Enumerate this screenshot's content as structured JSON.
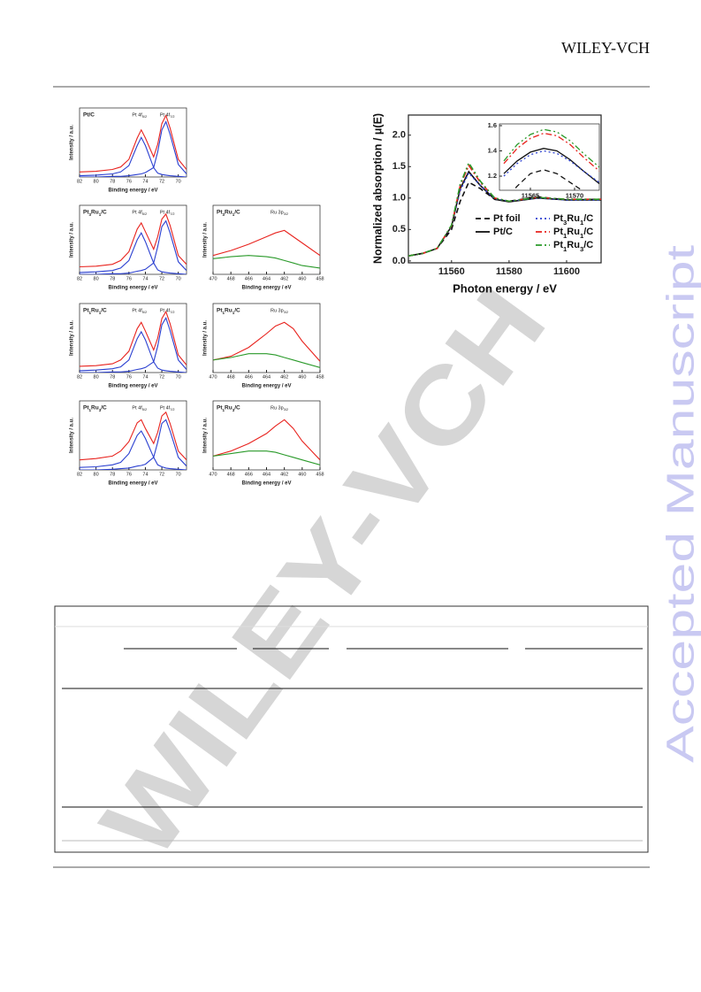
{
  "header": {
    "publisher": "WILEY-VCH"
  },
  "watermark": {
    "text": "WILEY-VCH",
    "stamp": "Accepted Manuscript"
  },
  "figure_xps": {
    "panels": [
      {
        "type": "line",
        "title": "Pt/C",
        "xlabel": "Binding energy / eV",
        "ylabel": "Intensity / a.u.",
        "peaks": [
          "Pt 4f5/2",
          "Pt 4f7/2"
        ],
        "xlim": [
          82,
          69
        ],
        "xticks": [
          82,
          80,
          78,
          76,
          74,
          72,
          70
        ],
        "ylim": [
          0,
          1.1
        ],
        "x": [
          82,
          80,
          78,
          77,
          76,
          75,
          74.5,
          74,
          73,
          72.5,
          72,
          71.5,
          71,
          70,
          69
        ],
        "series": [
          {
            "color": "#e8231e",
            "values": [
              0.08,
              0.09,
              0.12,
              0.16,
              0.28,
              0.62,
              0.75,
              0.62,
              0.32,
              0.52,
              0.85,
              0.98,
              0.78,
              0.28,
              0.12
            ]
          },
          {
            "color": "#2a3fd0",
            "values": [
              0.02,
              0.03,
              0.05,
              0.08,
              0.18,
              0.5,
              0.63,
              0.5,
              0.15,
              0.06,
              0.04,
              0.03,
              0.02,
              0.01,
              0.0
            ]
          },
          {
            "color": "#2a3fd0",
            "values": [
              0.0,
              0.0,
              0.01,
              0.01,
              0.02,
              0.04,
              0.05,
              0.07,
              0.15,
              0.4,
              0.75,
              0.88,
              0.68,
              0.2,
              0.05
            ]
          }
        ]
      },
      {
        "type": "line",
        "title": "Pt3Ru1/C",
        "xlabel": "Binding energy / eV",
        "ylabel": "Intensity / a.u.",
        "peaks": [
          "Pt 4f5/2",
          "Pt 4f7/2"
        ],
        "xlim": [
          82,
          69
        ],
        "xticks": [
          82,
          80,
          78,
          76,
          74,
          72,
          70
        ],
        "ylim": [
          0,
          1.1
        ],
        "x": [
          82,
          80,
          78,
          77,
          76,
          75,
          74.5,
          74,
          73,
          72.5,
          72,
          71.5,
          71,
          70,
          69
        ],
        "series": [
          {
            "color": "#e8231e",
            "values": [
              0.12,
              0.13,
              0.16,
              0.22,
              0.36,
              0.72,
              0.82,
              0.68,
              0.4,
              0.6,
              0.88,
              0.96,
              0.78,
              0.3,
              0.16
            ]
          },
          {
            "color": "#2a3fd0",
            "values": [
              0.03,
              0.04,
              0.06,
              0.1,
              0.22,
              0.55,
              0.66,
              0.52,
              0.18,
              0.07,
              0.04,
              0.03,
              0.02,
              0.01,
              0.0
            ]
          },
          {
            "color": "#2a3fd0",
            "values": [
              0.0,
              0.0,
              0.01,
              0.01,
              0.02,
              0.05,
              0.06,
              0.08,
              0.18,
              0.44,
              0.76,
              0.85,
              0.66,
              0.2,
              0.06
            ]
          }
        ]
      },
      {
        "type": "line",
        "title": "Pt3Ru1/C",
        "xlabel": "Binding energy / eV",
        "ylabel": "Intensity / a.u.",
        "peaks": [
          "Ru 3p3/2"
        ],
        "xlim": [
          470,
          458
        ],
        "xticks": [
          470,
          468,
          466,
          464,
          462,
          460,
          458
        ],
        "ylim": [
          0,
          1.1
        ],
        "x": [
          470,
          468,
          466,
          464,
          463,
          462,
          461,
          460,
          458
        ],
        "series": [
          {
            "color": "#e8231e",
            "values": [
              0.3,
              0.38,
              0.48,
              0.6,
              0.66,
              0.7,
              0.6,
              0.5,
              0.3
            ]
          },
          {
            "color": "#2a9a2a",
            "values": [
              0.25,
              0.28,
              0.3,
              0.28,
              0.26,
              0.22,
              0.18,
              0.14,
              0.1
            ]
          }
        ]
      },
      {
        "type": "line",
        "title": "Pt1Ru1/C",
        "xlabel": "Binding energy / eV",
        "ylabel": "Intensity / a.u.",
        "peaks": [
          "Pt 4f5/2",
          "Pt 4f7/2"
        ],
        "xlim": [
          82,
          69
        ],
        "xticks": [
          82,
          80,
          78,
          76,
          74,
          72,
          70
        ],
        "ylim": [
          0,
          1.1
        ],
        "x": [
          82,
          80,
          78,
          77,
          76,
          75,
          74.5,
          74,
          73,
          72.5,
          72,
          71.5,
          71,
          70,
          69
        ],
        "series": [
          {
            "color": "#e8231e",
            "values": [
              0.1,
              0.11,
              0.14,
              0.2,
              0.34,
              0.7,
              0.8,
              0.66,
              0.36,
              0.55,
              0.86,
              0.97,
              0.78,
              0.28,
              0.12
            ]
          },
          {
            "color": "#2a3fd0",
            "values": [
              0.03,
              0.04,
              0.06,
              0.09,
              0.2,
              0.54,
              0.65,
              0.52,
              0.17,
              0.07,
              0.04,
              0.03,
              0.02,
              0.01,
              0.0
            ]
          },
          {
            "color": "#2a3fd0",
            "values": [
              0.0,
              0.0,
              0.01,
              0.01,
              0.02,
              0.05,
              0.06,
              0.08,
              0.17,
              0.42,
              0.76,
              0.87,
              0.67,
              0.2,
              0.05
            ]
          }
        ]
      },
      {
        "type": "line",
        "title": "Pt1Ru1/C",
        "xlabel": "Binding energy / eV",
        "ylabel": "Intensity / a.u.",
        "peaks": [
          "Ru 3p3/2"
        ],
        "xlim": [
          470,
          458
        ],
        "xticks": [
          470,
          468,
          466,
          464,
          462,
          460,
          458
        ],
        "ylim": [
          0,
          1.1
        ],
        "x": [
          470,
          468,
          466,
          464,
          463,
          462,
          461,
          460,
          458
        ],
        "series": [
          {
            "color": "#e8231e",
            "values": [
              0.2,
              0.26,
              0.4,
              0.62,
              0.74,
              0.8,
              0.7,
              0.5,
              0.18
            ]
          },
          {
            "color": "#2a9a2a",
            "values": [
              0.2,
              0.24,
              0.3,
              0.3,
              0.28,
              0.24,
              0.2,
              0.16,
              0.08
            ]
          }
        ]
      },
      {
        "type": "line",
        "title": "Pt1Ru3/C",
        "xlabel": "Binding energy / eV",
        "ylabel": "Intensity / a.u.",
        "peaks": [
          "Pt 4f5/2",
          "Pt 4f7/2"
        ],
        "xlim": [
          82,
          69
        ],
        "xticks": [
          82,
          80,
          78,
          76,
          74,
          72,
          70
        ],
        "ylim": [
          0,
          1.1
        ],
        "x": [
          82,
          80,
          78,
          77,
          76,
          75,
          74.5,
          74,
          73,
          72.5,
          72,
          71.5,
          71,
          70,
          69
        ],
        "series": [
          {
            "color": "#e8231e",
            "values": [
              0.16,
              0.18,
              0.22,
              0.3,
              0.45,
              0.75,
              0.8,
              0.66,
              0.42,
              0.6,
              0.86,
              0.92,
              0.74,
              0.3,
              0.16
            ]
          },
          {
            "color": "#2a3fd0",
            "values": [
              0.04,
              0.05,
              0.08,
              0.12,
              0.26,
              0.55,
              0.62,
              0.5,
              0.2,
              0.08,
              0.05,
              0.03,
              0.02,
              0.01,
              0.0
            ]
          },
          {
            "color": "#2a3fd0",
            "values": [
              0.0,
              0.0,
              0.01,
              0.02,
              0.03,
              0.06,
              0.07,
              0.09,
              0.2,
              0.44,
              0.74,
              0.8,
              0.62,
              0.2,
              0.06
            ]
          }
        ]
      },
      {
        "type": "line",
        "title": "Pt1Ru3/C",
        "xlabel": "Binding energy / eV",
        "ylabel": "Intensity / a.u.",
        "peaks": [
          "Ru 3p3/2"
        ],
        "xlim": [
          470,
          458
        ],
        "xticks": [
          470,
          468,
          466,
          464,
          462,
          460,
          458
        ],
        "ylim": [
          0,
          1.1
        ],
        "x": [
          470,
          468,
          466,
          464,
          463,
          462,
          461,
          460,
          458
        ],
        "series": [
          {
            "color": "#e8231e",
            "values": [
              0.22,
              0.3,
              0.42,
              0.58,
              0.7,
              0.8,
              0.66,
              0.46,
              0.16
            ]
          },
          {
            "color": "#2a9a2a",
            "values": [
              0.22,
              0.26,
              0.3,
              0.3,
              0.28,
              0.24,
              0.2,
              0.16,
              0.08
            ]
          }
        ]
      }
    ]
  },
  "figure_xanes": {
    "type": "line",
    "xlabel": "Photon energy / eV",
    "ylabel": "Normalized absorption / μ(E)",
    "xlim": [
      11545,
      11612
    ],
    "xticks": [
      11560,
      11580,
      11600
    ],
    "ylim": [
      -0.03,
      2.32
    ],
    "yticks": [
      {
        "value": 0,
        "label": "0.0"
      },
      {
        "value": 0.5,
        "label": "0.5"
      },
      {
        "value": 1,
        "label": "1.0"
      },
      {
        "value": 1.5,
        "label": "1.5"
      },
      {
        "value": 2,
        "label": "2.0"
      }
    ],
    "legend": "lower right",
    "x": [
      11545,
      11550,
      11555,
      11560,
      11563,
      11566,
      11570,
      11575,
      11580,
      11590,
      11600,
      11612
    ],
    "series": [
      {
        "name": "Pt foil",
        "color": "#111111",
        "dash": "6,4",
        "values": [
          0.08,
          0.12,
          0.2,
          0.5,
          0.95,
          1.25,
          1.15,
          0.98,
          0.95,
          1.02,
          0.97,
          0.98
        ]
      },
      {
        "name": "Pt/C",
        "color": "#111111",
        "dash": "",
        "values": [
          0.08,
          0.12,
          0.2,
          0.55,
          1.15,
          1.42,
          1.2,
          0.98,
          0.94,
          1.0,
          0.97,
          0.97
        ]
      },
      {
        "name": "Pt3Ru1/C",
        "color": "#2a3fd0",
        "dash": "2,3",
        "values": [
          0.08,
          0.12,
          0.2,
          0.55,
          1.12,
          1.4,
          1.2,
          0.99,
          0.95,
          1.0,
          0.97,
          0.97
        ]
      },
      {
        "name": "Pt1Ru1/C",
        "color": "#e8231e",
        "dash": "7,3,2,3",
        "values": [
          0.08,
          0.12,
          0.2,
          0.56,
          1.2,
          1.52,
          1.25,
          1.0,
          0.95,
          1.01,
          0.98,
          0.98
        ]
      },
      {
        "name": "Pt1Ru3/C",
        "color": "#2a9a2a",
        "dash": "7,3,2,3,2,3",
        "values": [
          0.08,
          0.12,
          0.2,
          0.57,
          1.22,
          1.56,
          1.27,
          1.0,
          0.95,
          1.01,
          0.98,
          0.98
        ]
      }
    ],
    "inset": {
      "xlim": [
        11561.5,
        11572.8
      ],
      "xticks": [
        11565,
        11570
      ],
      "ylim": [
        1.088,
        1.614
      ],
      "yticks": [
        1.2,
        1.4,
        1.6
      ],
      "x": [
        11562,
        11563.5,
        11565,
        11566.5,
        11568,
        11569.5,
        11571,
        11572.8
      ],
      "series": [
        {
          "values": [
            1.0,
            1.12,
            1.22,
            1.25,
            1.22,
            1.15,
            1.08,
            1.02
          ]
        },
        {
          "values": [
            1.22,
            1.32,
            1.39,
            1.42,
            1.4,
            1.33,
            1.24,
            1.14
          ]
        },
        {
          "values": [
            1.2,
            1.3,
            1.37,
            1.4,
            1.38,
            1.32,
            1.24,
            1.15
          ]
        },
        {
          "values": [
            1.3,
            1.42,
            1.5,
            1.54,
            1.52,
            1.45,
            1.35,
            1.24
          ]
        },
        {
          "values": [
            1.32,
            1.45,
            1.53,
            1.57,
            1.55,
            1.48,
            1.38,
            1.27
          ]
        }
      ]
    }
  }
}
